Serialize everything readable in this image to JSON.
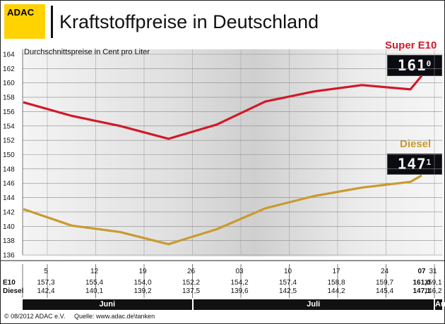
{
  "logo": {
    "text": "ADAC"
  },
  "title": "Kraftstoffpreise in Deutschland",
  "subtitle": "Durchschnittspreise in Cent pro Liter",
  "colors": {
    "e10": "#d01a2a",
    "diesel": "#c99a2e",
    "logo": "#ffd200"
  },
  "indicators": {
    "e10": {
      "label": "Super E10",
      "display": "161",
      "display_sup": "0"
    },
    "diesel": {
      "label": "Diesel",
      "display": "147",
      "display_sup": "1"
    }
  },
  "chart_data": {
    "type": "line",
    "title": "Kraftstoffpreise in Deutschland",
    "subtitle": "Durchschnittspreise in Cent pro Liter",
    "ylim": [
      136,
      164
    ],
    "yticks": [
      136,
      138,
      140,
      142,
      144,
      146,
      148,
      150,
      152,
      154,
      156,
      158,
      160,
      162,
      164
    ],
    "categories": [
      "5",
      "12",
      "19",
      "26",
      "03",
      "10",
      "17",
      "24",
      "31",
      "07"
    ],
    "series": [
      {
        "name": "E10",
        "values": [
          157.3,
          155.4,
          154.0,
          152.2,
          154.2,
          157.4,
          158.8,
          159.7,
          159.1,
          161.0
        ],
        "labels": [
          "157,3",
          "155,4",
          "154,0",
          "152,2",
          "154,2",
          "157,4",
          "158,8",
          "159,7",
          "159,1",
          "161,0"
        ]
      },
      {
        "name": "Diesel",
        "values": [
          142.4,
          140.1,
          139.2,
          137.5,
          139.6,
          142.5,
          144.2,
          145.4,
          146.2,
          147.1
        ],
        "labels": [
          "142,4",
          "140,1",
          "139,2",
          "137,5",
          "139,6",
          "142,5",
          "144,2",
          "145,4",
          "146,2",
          "147,1"
        ]
      }
    ],
    "months": [
      {
        "label": "Juni",
        "from": 0,
        "to": 3
      },
      {
        "label": "Juli",
        "from": 4,
        "to": 8
      },
      {
        "label": "Aug",
        "from": 9,
        "to": 9
      }
    ],
    "grid": true
  },
  "footer": {
    "copyright": "© 08/2012 ADAC e.V.",
    "source": "Quelle: www.adac.de\\tanken"
  }
}
